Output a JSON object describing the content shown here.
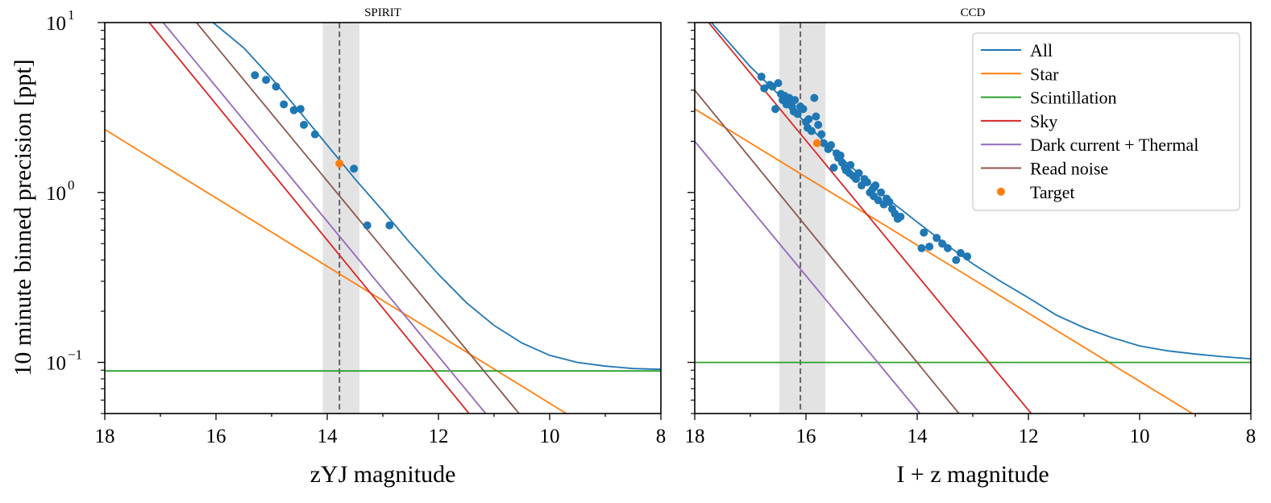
{
  "ylabel": "10 minute binned precision [ppt]",
  "colors": {
    "all": "#1f77b4",
    "star": "#ff7f0e",
    "scintillation": "#2ca02c",
    "sky": "#d62728",
    "dark": "#9467bd",
    "read": "#8c564b",
    "target": "#ff7f0e",
    "data": "#1f77b4",
    "band": "#d9d9d9",
    "vline": "#666666"
  },
  "legend": {
    "placement": "top-right",
    "entries": [
      {
        "key": "all",
        "label": "All",
        "marker": "line"
      },
      {
        "key": "star",
        "label": "Star",
        "marker": "line"
      },
      {
        "key": "scintillation",
        "label": "Scintillation",
        "marker": "line"
      },
      {
        "key": "sky",
        "label": "Sky",
        "marker": "line"
      },
      {
        "key": "dark",
        "label": "Dark current + Thermal",
        "marker": "line"
      },
      {
        "key": "read",
        "label": "Read noise",
        "marker": "line"
      },
      {
        "key": "target",
        "label": "Target",
        "marker": "dot"
      }
    ]
  },
  "chart_data": [
    {
      "type": "line",
      "title": "SPIRIT",
      "xlabel": "zYJ magnitude",
      "ylabel": "10 minute binned precision [ppt]",
      "xlim": [
        18,
        8
      ],
      "ylim": [
        0.05,
        10
      ],
      "yscale": "log",
      "xticks": [
        "18",
        "16",
        "14",
        "12",
        "10",
        "8"
      ],
      "yticks": [
        {
          "value": 10,
          "base": "10",
          "exp": "1"
        },
        {
          "value": 1,
          "base": "10",
          "exp": "0"
        },
        {
          "value": 0.1,
          "base": "10",
          "exp": "−1"
        }
      ],
      "vline": 13.78,
      "band": [
        14.08,
        13.42
      ],
      "series": [
        {
          "name": "Star",
          "key": "star",
          "x": [
            18,
            9.7
          ],
          "y": [
            2.35,
            0.05
          ]
        },
        {
          "name": "Scintillation",
          "key": "scintillation",
          "x": [
            18,
            8
          ],
          "y": [
            0.089,
            0.089
          ]
        },
        {
          "name": "Sky",
          "key": "sky",
          "x": [
            17.2,
            11.45
          ],
          "y": [
            10,
            0.05
          ]
        },
        {
          "name": "Dark current + Thermal",
          "key": "dark",
          "x": [
            16.95,
            11.15
          ],
          "y": [
            10,
            0.05
          ]
        },
        {
          "name": "Read noise",
          "key": "read",
          "x": [
            16.35,
            10.55
          ],
          "y": [
            10,
            0.05
          ]
        },
        {
          "name": "All",
          "key": "all",
          "x": [
            16.05,
            15.5,
            15.0,
            14.5,
            14.0,
            13.5,
            13.0,
            12.5,
            12.0,
            11.5,
            11.0,
            10.5,
            10.0,
            9.5,
            9.0,
            8.5,
            8.0
          ],
          "y": [
            10,
            7.1,
            4.7,
            3.0,
            1.9,
            1.2,
            0.78,
            0.5,
            0.33,
            0.225,
            0.165,
            0.13,
            0.11,
            0.1,
            0.095,
            0.092,
            0.091
          ]
        }
      ],
      "scatter": {
        "x": [
          15.3,
          15.1,
          14.92,
          14.78,
          14.6,
          14.48,
          14.42,
          14.22,
          13.52,
          13.28,
          12.88
        ],
        "y": [
          4.9,
          4.6,
          4.2,
          3.3,
          3.05,
          3.1,
          2.5,
          2.2,
          1.38,
          0.64,
          0.64
        ]
      },
      "target": {
        "x": 13.78,
        "y": 1.48
      }
    },
    {
      "type": "line",
      "title": "CCD",
      "xlabel": "I + z magnitude",
      "ylabel": "",
      "xlim": [
        18,
        8
      ],
      "ylim": [
        0.05,
        10
      ],
      "yscale": "log",
      "xticks": [
        "18",
        "16",
        "14",
        "12",
        "10",
        "8"
      ],
      "yticks": [
        {
          "value": 10,
          "base": "",
          "exp": ""
        },
        {
          "value": 1,
          "base": "",
          "exp": ""
        },
        {
          "value": 0.1,
          "base": "",
          "exp": ""
        }
      ],
      "vline": 16.1,
      "band": [
        16.48,
        15.65
      ],
      "series": [
        {
          "name": "Star",
          "key": "star",
          "x": [
            18,
            9.05
          ],
          "y": [
            3.1,
            0.05
          ]
        },
        {
          "name": "Scintillation",
          "key": "scintillation",
          "x": [
            18,
            8
          ],
          "y": [
            0.1,
            0.1
          ]
        },
        {
          "name": "Sky",
          "key": "sky",
          "x": [
            17.75,
            11.95
          ],
          "y": [
            10,
            0.05
          ]
        },
        {
          "name": "Dark current + Thermal",
          "key": "dark",
          "x": [
            18,
            13.95
          ],
          "y": [
            2.0,
            0.05
          ]
        },
        {
          "name": "Read noise",
          "key": "read",
          "x": [
            18,
            13.25
          ],
          "y": [
            4.0,
            0.05
          ]
        },
        {
          "name": "All",
          "key": "all",
          "x": [
            17.7,
            17.0,
            16.5,
            16.0,
            15.5,
            15.0,
            14.5,
            14.0,
            13.5,
            13.0,
            12.5,
            12.0,
            11.5,
            11.0,
            10.5,
            10.0,
            9.5,
            9.0,
            8.5,
            8.0
          ],
          "y": [
            10,
            5.5,
            3.8,
            2.55,
            1.75,
            1.25,
            0.9,
            0.67,
            0.5,
            0.38,
            0.3,
            0.24,
            0.19,
            0.16,
            0.14,
            0.125,
            0.117,
            0.112,
            0.108,
            0.105
          ]
        }
      ],
      "scatter": {
        "x": [
          16.8,
          16.75,
          16.65,
          16.6,
          16.55,
          16.5,
          16.45,
          16.42,
          16.38,
          16.35,
          16.3,
          16.28,
          16.25,
          16.22,
          16.2,
          16.15,
          16.1,
          16.05,
          16.0,
          15.97,
          15.95,
          15.9,
          15.85,
          15.82,
          15.78,
          15.72,
          15.68,
          15.6,
          15.55,
          15.5,
          15.45,
          15.42,
          15.38,
          15.35,
          15.3,
          15.28,
          15.22,
          15.2,
          15.15,
          15.1,
          15.05,
          15.0,
          14.95,
          14.9,
          14.85,
          14.8,
          14.78,
          14.75,
          14.7,
          14.65,
          14.6,
          14.55,
          14.5,
          14.45,
          14.4,
          14.35,
          14.3,
          13.92,
          13.88,
          13.78,
          13.65,
          13.55,
          13.45,
          13.3,
          13.22,
          13.1
        ],
        "y": [
          4.8,
          4.1,
          4.3,
          4.2,
          3.1,
          4.4,
          3.8,
          3.5,
          3.7,
          3.3,
          3.6,
          3.4,
          3.2,
          3.0,
          3.5,
          2.9,
          3.2,
          3.1,
          2.6,
          2.4,
          2.7,
          2.3,
          3.6,
          2.8,
          2.5,
          2.2,
          1.95,
          1.8,
          1.9,
          1.4,
          1.7,
          1.6,
          1.65,
          1.5,
          1.4,
          1.35,
          1.3,
          1.45,
          1.25,
          1.2,
          1.3,
          1.1,
          1.2,
          1.15,
          1.0,
          1.05,
          0.95,
          1.1,
          0.9,
          1.0,
          0.85,
          0.92,
          0.88,
          0.8,
          0.75,
          0.7,
          0.72,
          0.47,
          0.58,
          0.48,
          0.54,
          0.5,
          0.47,
          0.4,
          0.44,
          0.42
        ]
      },
      "target": {
        "x": 15.8,
        "y": 1.95
      }
    }
  ]
}
